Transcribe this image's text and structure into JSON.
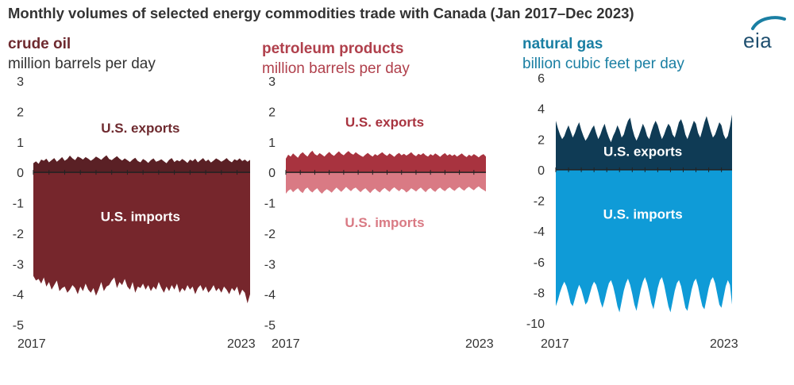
{
  "title": "Monthly volumes of selected energy commodities trade with Canada (Jan 2017–Dec 2023)",
  "logo_text": "eia",
  "chart_data": [
    {
      "type": "area",
      "title": "crude oil",
      "unit": "million barrels per day",
      "color_title": "#6e2a2f",
      "color_unit": "#333333",
      "x_range": [
        "2017-01",
        "2023-12"
      ],
      "x_ticks": [
        "2017",
        "2023"
      ],
      "ylim": [
        -5,
        3
      ],
      "y_ticks": [
        3,
        2,
        1,
        0,
        -1,
        -2,
        -3,
        -4,
        -5
      ],
      "grid": false,
      "series": [
        {
          "name": "U.S. exports",
          "color": "#5a2025",
          "values": [
            0.3,
            0.36,
            0.28,
            0.42,
            0.38,
            0.45,
            0.33,
            0.4,
            0.47,
            0.35,
            0.42,
            0.5,
            0.38,
            0.44,
            0.55,
            0.46,
            0.4,
            0.52,
            0.48,
            0.42,
            0.5,
            0.45,
            0.38,
            0.44,
            0.52,
            0.47,
            0.41,
            0.49,
            0.56,
            0.44,
            0.4,
            0.47,
            0.53,
            0.45,
            0.39,
            0.46,
            0.4,
            0.34,
            0.42,
            0.48,
            0.37,
            0.33,
            0.44,
            0.39,
            0.31,
            0.4,
            0.46,
            0.35,
            0.38,
            0.43,
            0.36,
            0.3,
            0.41,
            0.47,
            0.34,
            0.4,
            0.36,
            0.44,
            0.38,
            0.31,
            0.42,
            0.37,
            0.45,
            0.33,
            0.4,
            0.47,
            0.36,
            0.42,
            0.32,
            0.39,
            0.46,
            0.41,
            0.35,
            0.4,
            0.47,
            0.38,
            0.33,
            0.43,
            0.39,
            0.46,
            0.37,
            0.42,
            0.35,
            0.41
          ]
        },
        {
          "name": "U.S. imports",
          "color": "#76262c",
          "values": [
            -3.4,
            -3.55,
            -3.5,
            -3.65,
            -3.45,
            -3.75,
            -3.6,
            -3.85,
            -3.7,
            -3.55,
            -3.9,
            -3.8,
            -3.75,
            -3.95,
            -3.85,
            -3.7,
            -3.8,
            -4.0,
            -3.75,
            -3.9,
            -3.65,
            -3.85,
            -3.95,
            -3.8,
            -4.05,
            -3.85,
            -3.6,
            -3.9,
            -3.75,
            -3.7,
            -3.55,
            -3.45,
            -3.8,
            -3.6,
            -3.7,
            -3.5,
            -3.75,
            -3.85,
            -3.6,
            -3.95,
            -3.75,
            -3.8,
            -3.65,
            -3.85,
            -3.7,
            -3.9,
            -3.75,
            -3.85,
            -3.6,
            -3.8,
            -3.95,
            -3.75,
            -3.9,
            -3.7,
            -3.85,
            -3.65,
            -3.95,
            -3.8,
            -3.9,
            -3.7,
            -3.85,
            -3.75,
            -4.0,
            -3.8,
            -3.7,
            -3.9,
            -3.75,
            -3.95,
            -3.85,
            -3.7,
            -3.9,
            -3.8,
            -3.95,
            -3.75,
            -3.85,
            -4.0,
            -3.8,
            -3.9,
            -3.75,
            -4.05,
            -3.85,
            -3.95,
            -4.3,
            -4.0
          ]
        }
      ],
      "annotations": [
        {
          "text": "U.S. exports",
          "color": "#6e2a2f",
          "x": "2020-06",
          "y": 1.3
        },
        {
          "text": "U.S. imports",
          "color": "#ffffff",
          "x": "2020-06",
          "y": -1.6
        }
      ]
    },
    {
      "type": "area",
      "title": "petroleum products",
      "unit": "million barrels per day",
      "color_title": "#b0404c",
      "color_unit": "#b0404c",
      "x_range": [
        "2017-01",
        "2023-12"
      ],
      "x_ticks": [
        "2017",
        "2023"
      ],
      "ylim": [
        -5,
        3
      ],
      "y_ticks": [
        3,
        2,
        1,
        0,
        -1,
        -2,
        -3,
        -4,
        -5
      ],
      "grid": false,
      "series": [
        {
          "name": "U.S. exports",
          "color": "#a8333f",
          "values": [
            0.45,
            0.58,
            0.52,
            0.62,
            0.55,
            0.48,
            0.6,
            0.66,
            0.58,
            0.52,
            0.64,
            0.71,
            0.6,
            0.55,
            0.63,
            0.58,
            0.52,
            0.6,
            0.67,
            0.59,
            0.54,
            0.62,
            0.69,
            0.61,
            0.56,
            0.64,
            0.7,
            0.62,
            0.58,
            0.66,
            0.6,
            0.55,
            0.51,
            0.58,
            0.64,
            0.57,
            0.52,
            0.6,
            0.55,
            0.61,
            0.66,
            0.59,
            0.54,
            0.62,
            0.57,
            0.51,
            0.59,
            0.64,
            0.56,
            0.61,
            0.55,
            0.6,
            0.66,
            0.58,
            0.53,
            0.61,
            0.57,
            0.63,
            0.56,
            0.52,
            0.6,
            0.55,
            0.62,
            0.57,
            0.51,
            0.58,
            0.63,
            0.55,
            0.6,
            0.54,
            0.59,
            0.52,
            0.57,
            0.62,
            0.55,
            0.5,
            0.58,
            0.53,
            0.6,
            0.55,
            0.49,
            0.56,
            0.6,
            0.52
          ]
        },
        {
          "name": "U.S. imports",
          "color": "#d97a84",
          "values": [
            -0.7,
            -0.6,
            -0.55,
            -0.65,
            -0.58,
            -0.52,
            -0.62,
            -0.68,
            -0.55,
            -0.5,
            -0.6,
            -0.66,
            -0.58,
            -0.52,
            -0.63,
            -0.7,
            -0.61,
            -0.55,
            -0.6,
            -0.67,
            -0.58,
            -0.5,
            -0.57,
            -0.64,
            -0.56,
            -0.48,
            -0.55,
            -0.62,
            -0.54,
            -0.5,
            -0.58,
            -0.65,
            -0.57,
            -0.52,
            -0.6,
            -0.68,
            -0.59,
            -0.53,
            -0.61,
            -0.66,
            -0.57,
            -0.51,
            -0.58,
            -0.64,
            -0.55,
            -0.49,
            -0.56,
            -0.62,
            -0.54,
            -0.58,
            -0.66,
            -0.6,
            -0.52,
            -0.57,
            -0.63,
            -0.55,
            -0.5,
            -0.58,
            -0.65,
            -0.56,
            -0.51,
            -0.59,
            -0.64,
            -0.55,
            -0.5,
            -0.57,
            -0.62,
            -0.54,
            -0.49,
            -0.56,
            -0.61,
            -0.53,
            -0.48,
            -0.55,
            -0.6,
            -0.52,
            -0.47,
            -0.54,
            -0.59,
            -0.51,
            -0.46,
            -0.53,
            -0.58,
            -0.63
          ]
        }
      ],
      "annotations": [
        {
          "text": "U.S. exports",
          "color": "#a8333f",
          "x": "2020-06",
          "y": 1.5
        },
        {
          "text": "U.S. imports",
          "color": "#d97a84",
          "x": "2020-06",
          "y": -1.8
        }
      ]
    },
    {
      "type": "area",
      "title": "natural gas",
      "unit": "billion cubic feet per day",
      "color_title": "#1a7fa3",
      "color_unit": "#1a7fa3",
      "x_range": [
        "2017-01",
        "2023-12"
      ],
      "x_ticks": [
        "2017",
        "2023"
      ],
      "ylim": [
        -10,
        6
      ],
      "y_ticks": [
        6,
        4,
        2,
        0,
        -2,
        -4,
        -6,
        -8,
        -10
      ],
      "grid": false,
      "series": [
        {
          "name": "U.S. exports",
          "color": "#0f3b55",
          "values": [
            3.2,
            2.7,
            2.3,
            2.0,
            2.2,
            2.6,
            2.9,
            2.5,
            2.1,
            2.4,
            2.8,
            3.1,
            2.6,
            2.2,
            1.9,
            2.1,
            2.4,
            2.7,
            2.9,
            2.4,
            2.0,
            2.3,
            2.7,
            3.0,
            2.5,
            2.1,
            1.8,
            2.2,
            2.5,
            2.9,
            2.6,
            2.1,
            2.3,
            2.8,
            3.2,
            3.4,
            2.7,
            2.2,
            1.9,
            2.2,
            2.6,
            3.0,
            2.7,
            2.2,
            2.0,
            2.5,
            2.9,
            3.2,
            2.9,
            2.4,
            2.0,
            2.3,
            2.7,
            3.0,
            2.8,
            2.3,
            2.1,
            2.6,
            3.1,
            3.3,
            2.9,
            2.3,
            2.0,
            2.4,
            2.8,
            3.2,
            3.0,
            2.4,
            2.1,
            2.6,
            3.1,
            3.5,
            3.0,
            2.5,
            2.1,
            2.3,
            2.7,
            3.1,
            2.9,
            2.3,
            2.0,
            2.2,
            2.8,
            3.6
          ]
        },
        {
          "name": "U.S. imports",
          "color": "#0f9bd7",
          "values": [
            -8.9,
            -8.5,
            -8.0,
            -7.6,
            -7.3,
            -7.6,
            -8.1,
            -8.7,
            -8.9,
            -8.4,
            -7.9,
            -7.5,
            -7.8,
            -8.3,
            -8.8,
            -8.6,
            -8.1,
            -7.6,
            -7.3,
            -7.5,
            -8.0,
            -8.6,
            -9.0,
            -8.5,
            -7.9,
            -7.4,
            -7.2,
            -7.6,
            -8.2,
            -8.9,
            -9.3,
            -8.6,
            -7.9,
            -7.4,
            -7.1,
            -7.5,
            -8.1,
            -8.8,
            -9.2,
            -8.5,
            -7.8,
            -7.3,
            -7.0,
            -7.4,
            -8.0,
            -8.7,
            -9.1,
            -8.4,
            -7.7,
            -7.2,
            -7.0,
            -7.5,
            -8.2,
            -8.9,
            -9.3,
            -8.6,
            -7.9,
            -7.4,
            -7.2,
            -7.6,
            -8.3,
            -9.0,
            -9.2,
            -8.5,
            -7.8,
            -7.3,
            -7.1,
            -7.6,
            -8.3,
            -8.9,
            -9.1,
            -8.4,
            -7.7,
            -7.2,
            -7.0,
            -7.4,
            -8.1,
            -8.8,
            -9.0,
            -8.3,
            -7.6,
            -7.2,
            -7.5,
            -8.8
          ]
        }
      ],
      "annotations": [
        {
          "text": "U.S. exports",
          "color": "#ffffff",
          "x": "2020-06",
          "y": 0.9
        },
        {
          "text": "U.S. imports",
          "color": "#ffffff",
          "x": "2020-06",
          "y": -3.2
        }
      ]
    }
  ]
}
